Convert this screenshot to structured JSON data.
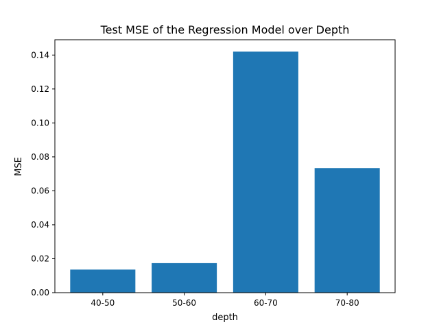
{
  "chart_data": {
    "type": "bar",
    "title": "Test MSE of the Regression Model over Depth",
    "xlabel": "depth",
    "ylabel": "MSE",
    "categories": [
      "40-50",
      "50-60",
      "60-70",
      "70-80"
    ],
    "values": [
      0.0136,
      0.0174,
      0.142,
      0.0734
    ],
    "ylim": [
      0,
      0.149
    ],
    "yticks": [
      0.0,
      0.02,
      0.04,
      0.06,
      0.08,
      0.1,
      0.12,
      0.14
    ],
    "ytick_labels": [
      "0.00",
      "0.02",
      "0.04",
      "0.06",
      "0.08",
      "0.10",
      "0.12",
      "0.14"
    ],
    "bar_color": "#1f77b4",
    "grid": false,
    "legend": "none"
  }
}
